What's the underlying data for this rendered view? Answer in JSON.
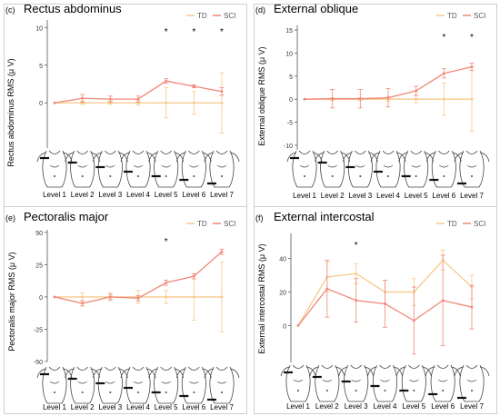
{
  "figure": {
    "colors": {
      "td": "#f7c98a",
      "sci": "#f08778",
      "axis": "#555555",
      "grid": "#e5e5e5",
      "figure_outline": "#444444"
    },
    "icon_names": [
      "torso-figure-icon",
      "electrode-marker-icon"
    ]
  },
  "chart_data": [
    {
      "type": "line",
      "panel": "(c)",
      "title": "Rectus abdominus",
      "ylabel": "Rectus abdominus RMS (μ V)",
      "xlabel": "",
      "categories": [
        "Level 1",
        "Level 2",
        "Level 3",
        "Level 4",
        "Level 5",
        "Level 6",
        "Level 7"
      ],
      "ylim": [
        -6,
        11
      ],
      "yticks": [
        0,
        5,
        10
      ],
      "grid": false,
      "legend": {
        "position": "top-right",
        "entries": [
          "TD",
          "SCI"
        ]
      },
      "series": [
        {
          "name": "TD",
          "color": "#f7c98a",
          "values": [
            0,
            0,
            0,
            0,
            0,
            0,
            0
          ],
          "err": [
            0,
            0.2,
            0.2,
            0.3,
            2.0,
            1.5,
            4.0
          ]
        },
        {
          "name": "SCI",
          "color": "#f08778",
          "values": [
            0,
            0.6,
            0.5,
            0.5,
            2.9,
            2.2,
            1.5
          ],
          "err": [
            0,
            0.5,
            0.4,
            0.4,
            0.3,
            0.2,
            0.5
          ]
        }
      ],
      "significance": {
        "labels": [
          "*",
          "*",
          "*"
        ],
        "level_index": [
          4,
          5,
          6
        ]
      }
    },
    {
      "type": "line",
      "panel": "(d)",
      "title": "External oblique",
      "ylabel": "External oblique RMS (μ V)",
      "xlabel": "",
      "categories": [
        "Level 1",
        "Level 2",
        "Level 3",
        "Level 4",
        "Level 5",
        "Level 6",
        "Level 7"
      ],
      "ylim": [
        -11,
        16
      ],
      "yticks": [
        -10,
        -5,
        0,
        5,
        10,
        15
      ],
      "grid": false,
      "legend": {
        "position": "top-right",
        "entries": [
          "TD",
          "SCI"
        ]
      },
      "series": [
        {
          "name": "TD",
          "color": "#f7c98a",
          "values": [
            0,
            0,
            0,
            0,
            0,
            0,
            0
          ],
          "err": [
            0,
            0.3,
            0.3,
            0.5,
            0.8,
            3.5,
            7.0
          ]
        },
        {
          "name": "SCI",
          "color": "#f08778",
          "values": [
            0,
            0.1,
            0.1,
            0.3,
            1.8,
            5.6,
            7.0
          ],
          "err": [
            0,
            2.0,
            2.0,
            2.0,
            1.0,
            1.0,
            0.8
          ]
        }
      ],
      "significance": {
        "labels": [
          "*",
          "*"
        ],
        "level_index": [
          5,
          6
        ]
      }
    },
    {
      "type": "line",
      "panel": "(e)",
      "title": "Pectoralis major",
      "ylabel": "Pectoralis major RMS (μ V)",
      "xlabel": "",
      "categories": [
        "Level 1",
        "Level 2",
        "Level 3",
        "Level 4",
        "Level 5",
        "Level 6",
        "Level 7"
      ],
      "ylim": [
        -50,
        52
      ],
      "yticks": [
        -50,
        -25,
        0,
        25,
        50
      ],
      "grid": false,
      "legend": {
        "position": "top-right",
        "entries": [
          "TD",
          "SCI"
        ]
      },
      "series": [
        {
          "name": "TD",
          "color": "#f7c98a",
          "values": [
            0,
            0,
            0,
            0,
            0,
            0,
            0
          ],
          "err": [
            0,
            3,
            3,
            5,
            5,
            18,
            27
          ]
        },
        {
          "name": "SCI",
          "color": "#f08778",
          "values": [
            0,
            -5,
            0,
            -1,
            11,
            16,
            35
          ],
          "err": [
            0,
            2,
            2,
            2,
            2,
            2,
            2
          ]
        }
      ],
      "significance": {
        "labels": [
          "*"
        ],
        "level_index": [
          4
        ]
      }
    },
    {
      "type": "line",
      "panel": "(f)",
      "title": "External intercostal",
      "ylabel": "External intercostal RMS (μ V)",
      "xlabel": "",
      "categories": [
        "Level 1",
        "Level 2",
        "Level 3",
        "Level 4",
        "Level 5",
        "Level 6",
        "Level 7"
      ],
      "ylim": [
        -22,
        55
      ],
      "yticks": [
        0,
        20,
        40
      ],
      "grid": false,
      "legend": {
        "position": "top-right",
        "entries": [
          "TD",
          "SCI"
        ]
      },
      "series": [
        {
          "name": "TD",
          "color": "#f7c98a",
          "values": [
            0,
            29,
            31,
            20,
            20,
            39,
            23
          ],
          "err": [
            0,
            9,
            6,
            7,
            8,
            6,
            7
          ]
        },
        {
          "name": "SCI",
          "color": "#f08778",
          "values": [
            0,
            22,
            15,
            13,
            3,
            15,
            11
          ],
          "err": [
            0,
            17,
            13,
            14,
            20,
            27,
            13
          ]
        }
      ],
      "significance": {
        "labels": [
          "*"
        ],
        "level_index": [
          2
        ]
      }
    }
  ]
}
